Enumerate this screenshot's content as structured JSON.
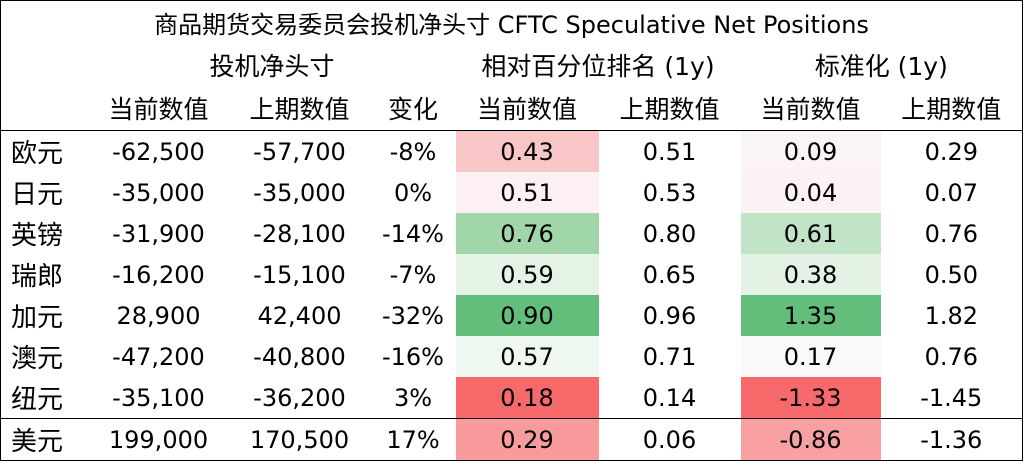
{
  "header": {
    "title": "商品期货交易委员会投机净头寸 CFTC Speculative Net Positions",
    "groups": [
      "投机净头寸",
      "相对百分位排名 (1y)",
      "标准化 (1y)"
    ],
    "columns": [
      "当前数值",
      "上期数值",
      "变化",
      "当前数值",
      "上期数值",
      "当前数值",
      "上期数值"
    ]
  },
  "table": {
    "rows": [
      {
        "label": "欧元",
        "cells": [
          "-62,500",
          "-57,700",
          "-8%",
          "0.43",
          "0.51",
          "0.09",
          "0.29"
        ],
        "rank_color": "#f9c6c7",
        "norm_color": "#fbf4f7"
      },
      {
        "label": "日元",
        "cells": [
          "-35,000",
          "-35,000",
          "0%",
          "0.51",
          "0.53",
          "0.04",
          "0.07"
        ],
        "rank_color": "#fcf0f2",
        "norm_color": "#fcf2f5"
      },
      {
        "label": "英镑",
        "cells": [
          "-31,900",
          "-28,100",
          "-14%",
          "0.76",
          "0.80",
          "0.61",
          "0.76"
        ],
        "rank_color": "#a0d6a8",
        "norm_color": "#c0e4c5"
      },
      {
        "label": "瑞郎",
        "cells": [
          "-16,200",
          "-15,100",
          "-7%",
          "0.59",
          "0.65",
          "0.38",
          "0.50"
        ],
        "rank_color": "#e4f3e6",
        "norm_color": "#e3f2e5"
      },
      {
        "label": "加元",
        "cells": [
          "28,900",
          "42,400",
          "-32%",
          "0.90",
          "0.96",
          "1.35",
          "1.82"
        ],
        "rank_color": "#63be7b",
        "norm_color": "#63be7b"
      },
      {
        "label": "澳元",
        "cells": [
          "-47,200",
          "-40,800",
          "-16%",
          "0.57",
          "0.71",
          "0.17",
          "0.76"
        ],
        "rank_color": "#eef7f0",
        "norm_color": "#fbf8fa"
      },
      {
        "label": "纽元",
        "cells": [
          "-35,100",
          "-36,200",
          "3%",
          "0.18",
          "0.14",
          "-1.33",
          "-1.45"
        ],
        "rank_color": "#f8696b",
        "norm_color": "#f8696b"
      },
      {
        "label": "美元",
        "cells": [
          "199,000",
          "170,500",
          "17%",
          "0.29",
          "0.06",
          "-0.86",
          "-1.36"
        ],
        "rank_color": "#f99b9d",
        "norm_color": "#f9a0a2"
      }
    ]
  }
}
